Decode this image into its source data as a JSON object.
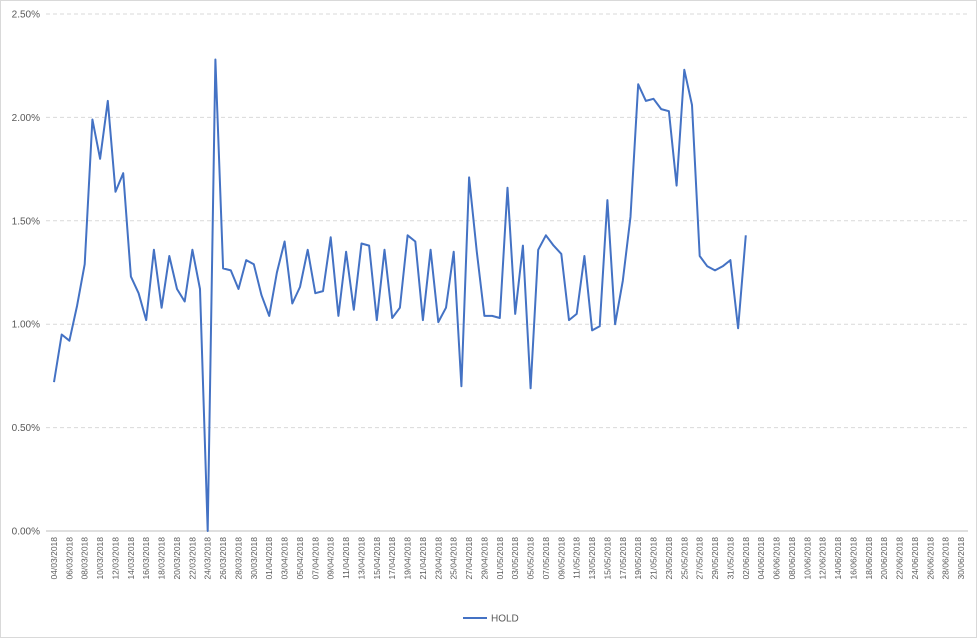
{
  "chart_data": {
    "type": "line",
    "categories": [
      "04/03/2018",
      null,
      "06/03/2018",
      null,
      "08/03/2018",
      null,
      "10/03/2018",
      null,
      "12/03/2018",
      null,
      "14/03/2018",
      null,
      "16/03/2018",
      null,
      "18/03/2018",
      null,
      "20/03/2018",
      null,
      "22/03/2018",
      null,
      "24/03/2018",
      null,
      "26/03/2018",
      null,
      "28/03/2018",
      null,
      "30/03/2018",
      null,
      "01/04/2018",
      null,
      "03/04/2018",
      null,
      "05/04/2018",
      null,
      "07/04/2018",
      null,
      "09/04/2018",
      null,
      "11/04/2018",
      null,
      "13/04/2018",
      null,
      "15/04/2018",
      null,
      "17/04/2018",
      null,
      "19/04/2018",
      null,
      "21/04/2018",
      null,
      "23/04/2018",
      null,
      "25/04/2018",
      null,
      "27/04/2018",
      null,
      "29/04/2018",
      null,
      "01/05/2018",
      null,
      "03/05/2018",
      null,
      "05/05/2018",
      null,
      "07/05/2018",
      null,
      "09/05/2018",
      null,
      "11/05/2018",
      null,
      "13/05/2018",
      null,
      "15/05/2018",
      null,
      "17/05/2018",
      null,
      "19/05/2018",
      null,
      "21/05/2018",
      null,
      "23/05/2018",
      null,
      "25/05/2018",
      null,
      "27/05/2018",
      null,
      "29/05/2018",
      null,
      "31/05/2018",
      null,
      "02/06/2018",
      null,
      "04/06/2018",
      null,
      "06/06/2018",
      null,
      "08/06/2018",
      null,
      "10/06/2018",
      null,
      "12/06/2018",
      null,
      "14/06/2018",
      null,
      "16/06/2018",
      null,
      "18/06/2018",
      null,
      "20/06/2018",
      null,
      "22/06/2018",
      null,
      "24/06/2018",
      null,
      "26/06/2018",
      null,
      "28/06/2018",
      null,
      "30/06/2018"
    ],
    "series": [
      {
        "name": "HOLD",
        "color": "#4472c4",
        "values": [
          0.72,
          0.95,
          0.92,
          1.09,
          1.29,
          1.99,
          1.8,
          2.08,
          1.64,
          1.73,
          1.23,
          1.15,
          1.02,
          1.36,
          1.08,
          1.33,
          1.17,
          1.11,
          1.36,
          1.17,
          0.0,
          2.28,
          1.27,
          1.26,
          1.17,
          1.31,
          1.29,
          1.14,
          1.04,
          1.25,
          1.4,
          1.1,
          1.18,
          1.36,
          1.15,
          1.16,
          1.42,
          1.04,
          1.35,
          1.07,
          1.39,
          1.38,
          1.02,
          1.36,
          1.03,
          1.08,
          1.43,
          1.4,
          1.02,
          1.36,
          1.01,
          1.08,
          1.35,
          0.7,
          1.71,
          1.35,
          1.04,
          1.04,
          1.03,
          1.66,
          1.05,
          1.38,
          0.69,
          1.36,
          1.43,
          1.38,
          1.34,
          1.02,
          1.05,
          1.33,
          0.97,
          0.99,
          1.6,
          1.0,
          1.21,
          1.52,
          2.16,
          2.08,
          2.09,
          2.04,
          2.03,
          1.67,
          2.23,
          2.06,
          1.33,
          1.28,
          1.26,
          1.28,
          1.31,
          0.98,
          1.43,
          null,
          null,
          null,
          null,
          null,
          null,
          null,
          null,
          null,
          null,
          null,
          null,
          null,
          null,
          null,
          null,
          null,
          null,
          null,
          null,
          null,
          null,
          null,
          null,
          null,
          null,
          null,
          null
        ]
      }
    ],
    "ylim": [
      0,
      2.5
    ],
    "yticks": [
      {
        "value": 0,
        "label": "0.00%"
      },
      {
        "value": 0.5,
        "label": "0.50%"
      },
      {
        "value": 1,
        "label": "1.00%"
      },
      {
        "value": 1.5,
        "label": "1.50%"
      },
      {
        "value": 2,
        "label": "2.00%"
      },
      {
        "value": 2.5,
        "label": "2.50%"
      }
    ],
    "grid": true,
    "legend": "bottom"
  }
}
